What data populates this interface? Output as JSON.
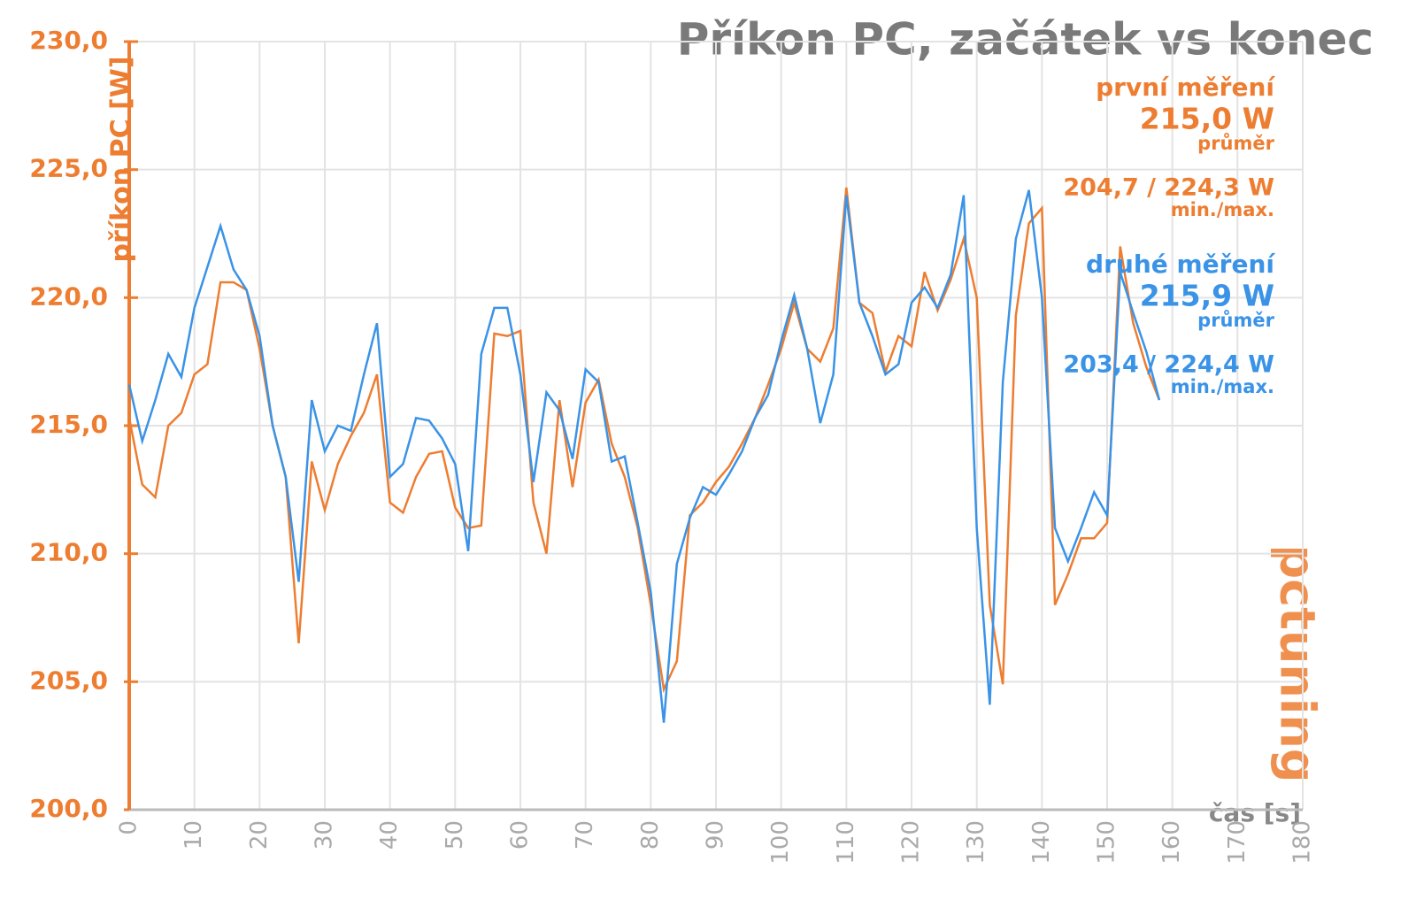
{
  "chart_data": {
    "type": "line",
    "title": "Příkon PC, začátek vs konec",
    "y_label": "příkon PC [W]",
    "x_label": "čas [s]",
    "logo": "pctuning",
    "grid": true,
    "xlim": [
      0,
      180
    ],
    "xticks": [
      0,
      10,
      20,
      30,
      40,
      50,
      60,
      70,
      80,
      90,
      100,
      110,
      120,
      130,
      140,
      150,
      160,
      170,
      180
    ],
    "ylim": [
      200,
      230
    ],
    "yticks": [
      {
        "value": 200,
        "label": "200,0"
      },
      {
        "value": 205,
        "label": "205,0"
      },
      {
        "value": 210,
        "label": "210,0"
      },
      {
        "value": 215,
        "label": "215,0"
      },
      {
        "value": 220,
        "label": "220,0"
      },
      {
        "value": 225,
        "label": "225,0"
      },
      {
        "value": 230,
        "label": "230,0"
      }
    ],
    "x": [
      0,
      2,
      4,
      6,
      8,
      10,
      12,
      14,
      16,
      18,
      20,
      22,
      24,
      26,
      28,
      30,
      32,
      34,
      36,
      38,
      40,
      42,
      44,
      46,
      48,
      50,
      52,
      54,
      56,
      58,
      60,
      62,
      64,
      66,
      68,
      70,
      72,
      74,
      76,
      78,
      80,
      82,
      84,
      86,
      88,
      90,
      92,
      94,
      96,
      98,
      100,
      102,
      104,
      106,
      108,
      110,
      112,
      114,
      116,
      118,
      120,
      122,
      124,
      126,
      128,
      130,
      132,
      134,
      136,
      138,
      140,
      142,
      144,
      146,
      148,
      150,
      152,
      154,
      156,
      158
    ],
    "series": [
      {
        "name": "první měření",
        "color": "#ed7d31",
        "mean_label": "215,0 W",
        "mean_caption": "průměr",
        "range_label": "204,7 / 224,3 W",
        "range_caption": "min./max.",
        "values": [
          215.3,
          212.7,
          212.2,
          215.0,
          215.5,
          217.0,
          217.4,
          220.6,
          220.6,
          220.3,
          218.0,
          215.0,
          213.0,
          206.5,
          213.6,
          211.7,
          213.5,
          214.6,
          215.5,
          217.0,
          212.0,
          211.6,
          213.0,
          213.9,
          214.0,
          211.8,
          211.0,
          211.1,
          218.6,
          218.5,
          218.7,
          212.0,
          210.0,
          216.0,
          212.6,
          215.9,
          216.8,
          214.3,
          213.0,
          211.0,
          208.0,
          204.7,
          205.8,
          211.5,
          212.0,
          212.8,
          213.4,
          214.3,
          215.3,
          216.6,
          218.0,
          219.8,
          218.0,
          217.5,
          218.8,
          224.3,
          219.8,
          219.4,
          217.1,
          218.5,
          218.1,
          221.0,
          219.5,
          220.7,
          222.3,
          220.0,
          208.0,
          204.9,
          219.3,
          222.9,
          223.5,
          208.0,
          209.2,
          210.6,
          210.6,
          211.2,
          222.0,
          219.0,
          217.3,
          216.0
        ]
      },
      {
        "name": "druhé měření",
        "color": "#3a93e6",
        "mean_label": "215,9 W",
        "mean_caption": "průměr",
        "range_label": "203,4 / 224,4 W",
        "range_caption": "min./max.",
        "values": [
          216.6,
          214.4,
          216.0,
          217.8,
          216.9,
          219.6,
          221.2,
          222.8,
          221.1,
          220.3,
          218.5,
          215.0,
          213.0,
          208.9,
          216.0,
          214.0,
          215.0,
          214.8,
          217.0,
          219.0,
          213.0,
          213.5,
          215.3,
          215.2,
          214.5,
          213.5,
          210.1,
          217.8,
          219.6,
          219.6,
          217.0,
          212.8,
          216.3,
          215.6,
          213.7,
          217.2,
          216.7,
          213.6,
          213.8,
          211.2,
          208.5,
          203.4,
          209.6,
          211.4,
          212.6,
          212.3,
          213.1,
          214.0,
          215.3,
          216.2,
          218.3,
          220.1,
          218.0,
          215.1,
          217.0,
          224.0,
          219.8,
          218.5,
          217.0,
          217.4,
          219.8,
          220.4,
          219.6,
          220.9,
          224.0,
          211.0,
          204.1,
          216.7,
          222.3,
          224.2,
          220.0,
          211.0,
          209.7,
          211.0,
          212.4,
          211.5,
          221.0,
          219.4,
          217.9,
          216.0
        ]
      }
    ]
  }
}
